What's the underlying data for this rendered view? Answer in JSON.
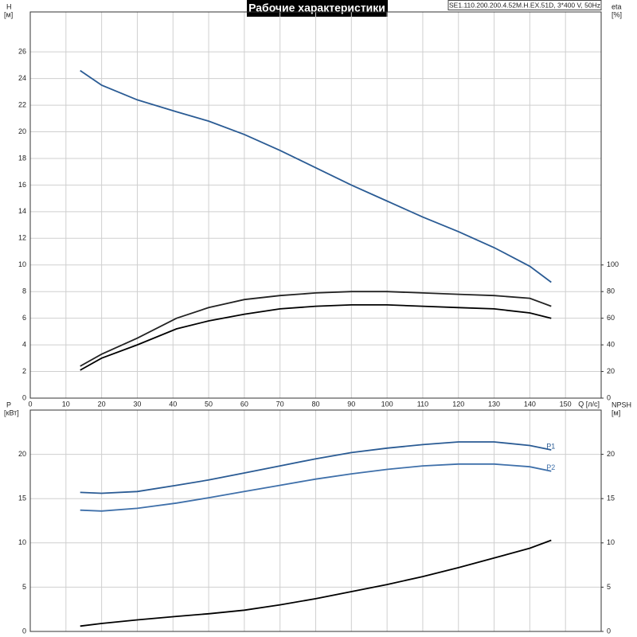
{
  "chart_data": [
    {
      "type": "line",
      "title": "Рабочие характеристики",
      "model": "SE1.110.200.200.4.52M.H.EX.51D, 3*400 V, 50Hz",
      "ylabel": "H",
      "yunit": "[м]",
      "y2label": "eta",
      "y2unit": "[%]",
      "xlabel": "Q [л/с]",
      "x": [
        14,
        20,
        30,
        41,
        50,
        60,
        70,
        80,
        90,
        100,
        110,
        120,
        130,
        140,
        146
      ],
      "xlim": [
        0,
        160
      ],
      "xticks": [
        0,
        10,
        20,
        30,
        40,
        50,
        60,
        70,
        80,
        90,
        100,
        110,
        120,
        130,
        140,
        150
      ],
      "ylim": [
        0,
        29
      ],
      "yticks": [
        0,
        2,
        4,
        6,
        8,
        10,
        12,
        14,
        16,
        18,
        20,
        22,
        24,
        26
      ],
      "y2lim": [
        0,
        290
      ],
      "y2ticks": [
        0,
        20,
        40,
        60,
        80,
        100
      ],
      "grid": true,
      "series": [
        {
          "color": "#2a5b94",
          "values": [
            24.6,
            23.5,
            22.4,
            21.5,
            20.8,
            19.8,
            18.6,
            17.3,
            16.0,
            14.8,
            13.6,
            12.5,
            11.3,
            9.9,
            8.7
          ]
        },
        {
          "color": "#222222",
          "axis": "y2",
          "values": [
            24,
            33,
            45,
            60,
            68,
            74,
            77,
            79,
            80,
            80,
            79,
            78,
            77,
            75,
            69
          ]
        },
        {
          "color": "#000000",
          "axis": "y2",
          "values": [
            21,
            30,
            40,
            52,
            58,
            63,
            67,
            69,
            70,
            70,
            69,
            68,
            67,
            64,
            60
          ]
        }
      ]
    },
    {
      "type": "line",
      "ylabel": "P",
      "yunit": "[кВт]",
      "y2label": "NPSH",
      "y2unit": "[м]",
      "x": [
        14,
        20,
        30,
        41,
        50,
        60,
        70,
        80,
        90,
        100,
        110,
        120,
        130,
        140,
        146
      ],
      "xlim": [
        0,
        160
      ],
      "ylim": [
        0,
        25
      ],
      "yticks": [
        0,
        5,
        10,
        15,
        20
      ],
      "y2lim": [
        0,
        25
      ],
      "y2ticks": [
        0,
        5,
        10,
        15,
        20
      ],
      "grid": true,
      "series": [
        {
          "name": "P1",
          "color": "#2a5b94",
          "values": [
            15.7,
            15.6,
            15.8,
            16.5,
            17.1,
            17.9,
            18.7,
            19.5,
            20.2,
            20.7,
            21.1,
            21.4,
            21.4,
            21.0,
            20.5
          ]
        },
        {
          "name": "P2",
          "color": "#3f70aa",
          "values": [
            13.7,
            13.6,
            13.9,
            14.5,
            15.1,
            15.8,
            16.5,
            17.2,
            17.8,
            18.3,
            18.7,
            18.9,
            18.9,
            18.6,
            18.1
          ]
        },
        {
          "color": "#000000",
          "axis": "y2",
          "values": [
            0.6,
            0.9,
            1.3,
            1.7,
            2.0,
            2.4,
            3.0,
            3.7,
            4.5,
            5.3,
            6.2,
            7.2,
            8.3,
            9.4,
            10.3
          ]
        }
      ]
    }
  ]
}
